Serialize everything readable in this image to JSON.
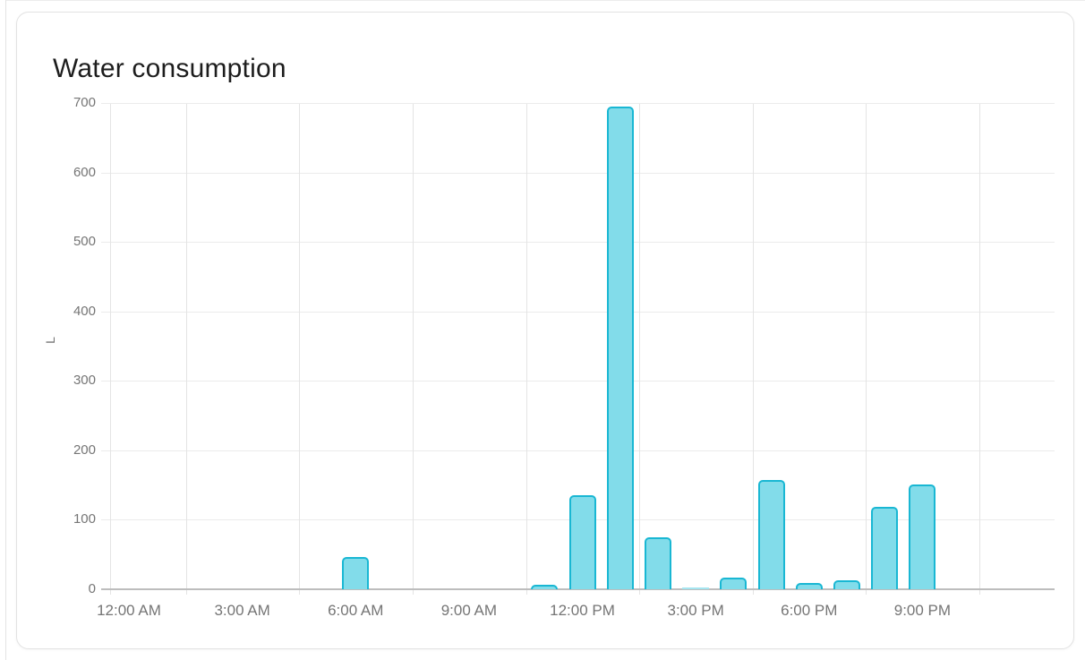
{
  "card": {
    "title": "Water consumption"
  },
  "chart_data": {
    "type": "bar",
    "title": "Water consumption",
    "xlabel": "",
    "ylabel": "L",
    "unit": "L",
    "ylim": [
      0,
      700
    ],
    "y_ticks": [
      0,
      100,
      200,
      300,
      400,
      500,
      600,
      700
    ],
    "x_axis_labels": [
      "12:00 AM",
      "3:00 AM",
      "6:00 AM",
      "9:00 AM",
      "12:00 PM",
      "3:00 PM",
      "6:00 PM",
      "9:00 PM"
    ],
    "categories": [
      "12:00 AM",
      "1:00 AM",
      "2:00 AM",
      "3:00 AM",
      "4:00 AM",
      "5:00 AM",
      "6:00 AM",
      "7:00 AM",
      "8:00 AM",
      "9:00 AM",
      "10:00 AM",
      "11:00 AM",
      "12:00 PM",
      "1:00 PM",
      "2:00 PM",
      "3:00 PM",
      "4:00 PM",
      "5:00 PM",
      "6:00 PM",
      "7:00 PM",
      "8:00 PM",
      "9:00 PM",
      "10:00 PM",
      "11:00 PM"
    ],
    "values": [
      0,
      0,
      0,
      0,
      0,
      0,
      46,
      0,
      0,
      0,
      0,
      6,
      135,
      695,
      75,
      2,
      17,
      158,
      9,
      13,
      119,
      151,
      0,
      0
    ],
    "grid": true,
    "legend_position": "none",
    "colors": {
      "bar_fill": "#82dcea",
      "bar_border": "#19b7d3",
      "bar_sliver": "#a5e5f0",
      "axis_label": "#757575",
      "gridline": "#ebebeb",
      "axis_line": "#bdbdbd",
      "title": "#1d1d1d"
    }
  }
}
